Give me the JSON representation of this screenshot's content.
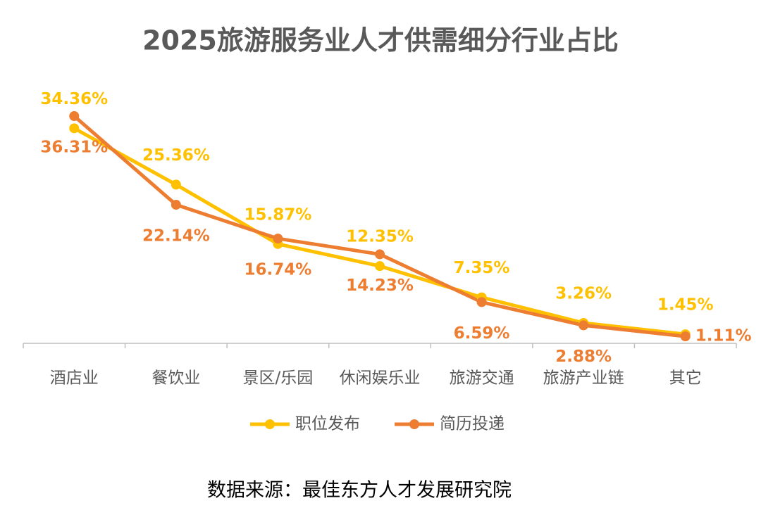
{
  "chart_data": {
    "type": "line",
    "title": "2025旅游服务业人才供需细分行业占比",
    "categories": [
      "酒店业",
      "餐饮业",
      "景区/乐园",
      "休闲娱乐业",
      "旅游交通",
      "旅游产业链",
      "其它"
    ],
    "series": [
      {
        "name": "职位发布",
        "color": "#FFC000",
        "values": [
          34.36,
          25.36,
          15.87,
          12.35,
          7.35,
          3.26,
          1.45
        ],
        "value_labels": [
          "34.36%",
          "25.36%",
          "15.87%",
          "12.35%",
          "7.35%",
          "3.26%",
          "1.45%"
        ]
      },
      {
        "name": "简历投递",
        "color": "#ED7D31",
        "values": [
          36.31,
          22.14,
          16.74,
          14.23,
          6.59,
          2.88,
          1.11
        ],
        "value_labels": [
          "36.31%",
          "22.14%",
          "16.74%",
          "14.23%",
          "6.59%",
          "2.88%",
          "1.11%"
        ]
      }
    ],
    "source": "数据来源：最佳东方人才发展研究院"
  }
}
